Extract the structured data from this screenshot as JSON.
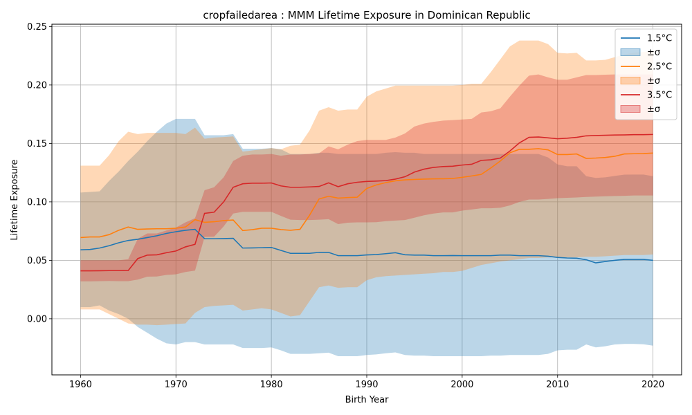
{
  "chart_data": {
    "type": "line",
    "title": "cropfailedarea : MMM Lifetime Exposure in Dominican Republic",
    "xlabel": "Birth Year",
    "ylabel": "Lifetime Exposure",
    "xlim": [
      1957,
      2023
    ],
    "ylim": [
      -0.048,
      0.252
    ],
    "x_ticks": [
      1960,
      1970,
      1980,
      1990,
      2000,
      2010,
      2020
    ],
    "y_ticks": [
      0.0,
      0.05,
      0.1,
      0.15,
      0.2,
      0.25
    ],
    "y_tick_labels": [
      "0.00",
      "0.05",
      "0.10",
      "0.15",
      "0.20",
      "0.25"
    ],
    "grid": true,
    "legend_position": "top-right",
    "x": [
      1960,
      1961,
      1962,
      1963,
      1964,
      1965,
      1966,
      1967,
      1968,
      1969,
      1970,
      1971,
      1972,
      1973,
      1974,
      1975,
      1976,
      1977,
      1978,
      1979,
      1980,
      1981,
      1982,
      1983,
      1984,
      1985,
      1986,
      1987,
      1988,
      1989,
      1990,
      1991,
      1992,
      1993,
      1994,
      1995,
      1996,
      1997,
      1998,
      1999,
      2000,
      2001,
      2002,
      2003,
      2004,
      2005,
      2006,
      2007,
      2008,
      2009,
      2010,
      2011,
      2012,
      2013,
      2014,
      2015,
      2016,
      2017,
      2018,
      2019,
      2020
    ],
    "series": [
      {
        "name": "1.5°C",
        "band_label": "±σ",
        "color": "#1f77b4",
        "band_color": "#1f77b4",
        "mean": [
          0.059,
          0.0593,
          0.0605,
          0.0625,
          0.065,
          0.067,
          0.068,
          0.0695,
          0.071,
          0.073,
          0.0745,
          0.0757,
          0.0765,
          0.0685,
          0.0685,
          0.0686,
          0.0688,
          0.0605,
          0.0606,
          0.0608,
          0.061,
          0.0585,
          0.056,
          0.056,
          0.056,
          0.0568,
          0.0568,
          0.054,
          0.054,
          0.054,
          0.0546,
          0.0549,
          0.0557,
          0.0565,
          0.0548,
          0.0545,
          0.0545,
          0.054,
          0.054,
          0.0541,
          0.054,
          0.054,
          0.054,
          0.054,
          0.0545,
          0.0545,
          0.054,
          0.054,
          0.054,
          0.0535,
          0.0525,
          0.052,
          0.0518,
          0.0505,
          0.0478,
          0.049,
          0.05,
          0.0508,
          0.0508,
          0.0508,
          0.05
        ],
        "upper": [
          0.108,
          0.1085,
          0.109,
          0.118,
          0.126,
          0.135,
          0.143,
          0.152,
          0.16,
          0.167,
          0.171,
          0.171,
          0.171,
          0.157,
          0.157,
          0.157,
          0.158,
          0.1455,
          0.1455,
          0.1455,
          0.146,
          0.145,
          0.141,
          0.141,
          0.141,
          0.142,
          0.142,
          0.141,
          0.141,
          0.141,
          0.141,
          0.141,
          0.142,
          0.1425,
          0.142,
          0.142,
          0.141,
          0.141,
          0.141,
          0.141,
          0.141,
          0.141,
          0.141,
          0.141,
          0.141,
          0.141,
          0.141,
          0.141,
          0.141,
          0.138,
          0.132,
          0.1305,
          0.1305,
          0.122,
          0.1205,
          0.121,
          0.1222,
          0.1233,
          0.1234,
          0.1234,
          0.122
        ],
        "lower": [
          0.01,
          0.01,
          0.0115,
          0.007,
          0.004,
          0.0,
          -0.007,
          -0.012,
          -0.017,
          -0.021,
          -0.022,
          -0.02,
          -0.02,
          -0.022,
          -0.022,
          -0.022,
          -0.022,
          -0.025,
          -0.025,
          -0.025,
          -0.0245,
          -0.027,
          -0.03,
          -0.03,
          -0.03,
          -0.0295,
          -0.029,
          -0.032,
          -0.032,
          -0.032,
          -0.031,
          -0.0305,
          -0.0295,
          -0.0288,
          -0.031,
          -0.0315,
          -0.0315,
          -0.032,
          -0.032,
          -0.032,
          -0.032,
          -0.032,
          -0.032,
          -0.0315,
          -0.0315,
          -0.031,
          -0.031,
          -0.031,
          -0.031,
          -0.03,
          -0.027,
          -0.0265,
          -0.0265,
          -0.022,
          -0.0245,
          -0.0235,
          -0.022,
          -0.0215,
          -0.0215,
          -0.0218,
          -0.023
        ]
      },
      {
        "name": "2.5°C",
        "band_label": "±σ",
        "color": "#ff7f0e",
        "band_color": "#ff7f0e",
        "mean": [
          0.0695,
          0.07,
          0.07,
          0.072,
          0.0757,
          0.0785,
          0.0765,
          0.0768,
          0.077,
          0.077,
          0.0775,
          0.0785,
          0.0848,
          0.0825,
          0.083,
          0.084,
          0.0845,
          0.0755,
          0.0762,
          0.0775,
          0.0775,
          0.0763,
          0.0757,
          0.0765,
          0.0885,
          0.1025,
          0.1048,
          0.1032,
          0.1037,
          0.104,
          0.1115,
          0.1145,
          0.1165,
          0.118,
          0.1188,
          0.1192,
          0.1195,
          0.1197,
          0.1198,
          0.12,
          0.121,
          0.1222,
          0.1235,
          0.129,
          0.135,
          0.142,
          0.145,
          0.145,
          0.1455,
          0.1445,
          0.1405,
          0.1405,
          0.141,
          0.1372,
          0.1375,
          0.138,
          0.139,
          0.141,
          0.1412,
          0.1413,
          0.1418
        ],
        "upper": [
          0.131,
          0.131,
          0.131,
          0.14,
          0.152,
          0.16,
          0.158,
          0.159,
          0.159,
          0.159,
          0.159,
          0.158,
          0.1635,
          0.154,
          0.155,
          0.1555,
          0.156,
          0.143,
          0.144,
          0.145,
          0.146,
          0.145,
          0.148,
          0.149,
          0.161,
          0.178,
          0.181,
          0.178,
          0.179,
          0.179,
          0.19,
          0.1945,
          0.197,
          0.1995,
          0.1995,
          0.1995,
          0.1995,
          0.1995,
          0.1995,
          0.1995,
          0.2,
          0.201,
          0.201,
          0.211,
          0.222,
          0.233,
          0.238,
          0.238,
          0.238,
          0.235,
          0.2275,
          0.227,
          0.2275,
          0.221,
          0.221,
          0.2215,
          0.2238,
          0.2262,
          0.2276,
          0.2283,
          0.2286
        ],
        "lower": [
          0.008,
          0.008,
          0.008,
          0.004,
          0.0,
          -0.004,
          -0.005,
          -0.005,
          -0.0055,
          -0.005,
          -0.0045,
          -0.004,
          0.005,
          0.01,
          0.011,
          0.0115,
          0.012,
          0.007,
          0.008,
          0.009,
          0.008,
          0.005,
          0.002,
          0.003,
          0.015,
          0.027,
          0.0285,
          0.0265,
          0.027,
          0.027,
          0.033,
          0.0355,
          0.0365,
          0.037,
          0.0375,
          0.038,
          0.0385,
          0.039,
          0.04,
          0.04,
          0.041,
          0.0435,
          0.046,
          0.0475,
          0.049,
          0.05,
          0.051,
          0.052,
          0.052,
          0.0525,
          0.0525,
          0.0525,
          0.0525,
          0.053,
          0.053,
          0.0535,
          0.054,
          0.0545,
          0.0545,
          0.0545,
          0.055
        ]
      },
      {
        "name": "3.5°C",
        "band_label": "±σ",
        "color": "#d62728",
        "band_color": "#d62728",
        "mean": [
          0.041,
          0.041,
          0.0411,
          0.0412,
          0.0412,
          0.0413,
          0.0515,
          0.0545,
          0.0547,
          0.0565,
          0.058,
          0.0615,
          0.0637,
          0.0902,
          0.0912,
          0.1,
          0.1125,
          0.1155,
          0.116,
          0.116,
          0.1162,
          0.1137,
          0.1125,
          0.1125,
          0.1128,
          0.1132,
          0.1163,
          0.113,
          0.1155,
          0.1168,
          0.1175,
          0.1178,
          0.1182,
          0.1195,
          0.1215,
          0.1255,
          0.128,
          0.1295,
          0.1302,
          0.1305,
          0.1315,
          0.1322,
          0.1355,
          0.136,
          0.1375,
          0.1435,
          0.1505,
          0.1552,
          0.1555,
          0.1548,
          0.154,
          0.1545,
          0.1552,
          0.1565,
          0.1568,
          0.157,
          0.1572,
          0.1573,
          0.1575,
          0.1575,
          0.1577
        ],
        "upper": [
          0.05,
          0.05,
          0.05,
          0.05,
          0.05,
          0.051,
          0.0685,
          0.073,
          0.073,
          0.0755,
          0.078,
          0.0825,
          0.086,
          0.11,
          0.1125,
          0.121,
          0.135,
          0.1395,
          0.1405,
          0.1405,
          0.141,
          0.1395,
          0.1405,
          0.1405,
          0.141,
          0.1415,
          0.1475,
          0.145,
          0.149,
          0.152,
          0.153,
          0.153,
          0.153,
          0.155,
          0.1585,
          0.1645,
          0.167,
          0.1685,
          0.1695,
          0.17,
          0.1705,
          0.171,
          0.1765,
          0.1775,
          0.18,
          0.19,
          0.1995,
          0.208,
          0.209,
          0.2065,
          0.2045,
          0.2045,
          0.2065,
          0.2085,
          0.2085,
          0.2088,
          0.209,
          0.209,
          0.209,
          0.209,
          0.209
        ],
        "lower": [
          0.032,
          0.032,
          0.0322,
          0.0323,
          0.0322,
          0.0322,
          0.0335,
          0.036,
          0.0362,
          0.0375,
          0.038,
          0.04,
          0.0412,
          0.07,
          0.0702,
          0.079,
          0.09,
          0.0915,
          0.0915,
          0.0915,
          0.0915,
          0.088,
          0.0848,
          0.0845,
          0.0845,
          0.0848,
          0.0852,
          0.081,
          0.0822,
          0.0825,
          0.0825,
          0.0826,
          0.0835,
          0.084,
          0.0845,
          0.0865,
          0.0885,
          0.09,
          0.091,
          0.091,
          0.0925,
          0.0935,
          0.0945,
          0.0945,
          0.095,
          0.097,
          0.1,
          0.102,
          0.102,
          0.1025,
          0.1032,
          0.1035,
          0.1038,
          0.1042,
          0.1045,
          0.1048,
          0.105,
          0.1052,
          0.1055,
          0.1055,
          0.1055
        ]
      }
    ]
  }
}
